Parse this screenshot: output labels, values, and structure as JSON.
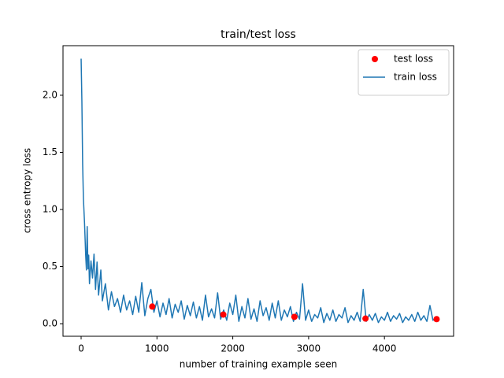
{
  "chart_data": {
    "type": "line",
    "title": "train/test loss",
    "x_label": "number of training example seen",
    "y_label": "cross entropy loss",
    "xlim": [
      -239,
      4912
    ],
    "ylim": [
      -0.11,
      2.434
    ],
    "xticks": [
      0,
      1000,
      2000,
      3000,
      4000
    ],
    "yticks": [
      {
        "value": 0,
        "label": "0.0"
      },
      {
        "value": 0.5,
        "label": "0.5"
      },
      {
        "value": 1,
        "label": "1.0"
      },
      {
        "value": 1.5,
        "label": "1.5"
      },
      {
        "value": 2,
        "label": "2.0"
      }
    ],
    "grid": false,
    "legend": "upper right",
    "series": [
      {
        "name": "test loss",
        "type": "scatter",
        "color": "#ff0000",
        "x": [
          938,
          1875,
          2813,
          3750,
          4688
        ],
        "values": [
          0.15,
          0.08,
          0.06,
          0.045,
          0.04
        ]
      },
      {
        "name": "train loss",
        "type": "line",
        "color": "#1f77b4",
        "x": [
          0,
          10,
          20,
          30,
          45,
          60,
          70,
          80,
          90,
          100,
          110,
          130,
          150,
          170,
          190,
          210,
          230,
          260,
          280,
          320,
          360,
          400,
          440,
          480,
          520,
          560,
          600,
          640,
          680,
          720,
          760,
          800,
          840,
          880,
          920,
          960,
          1000,
          1040,
          1080,
          1120,
          1160,
          1200,
          1240,
          1280,
          1320,
          1360,
          1400,
          1440,
          1480,
          1520,
          1560,
          1600,
          1640,
          1680,
          1720,
          1760,
          1800,
          1840,
          1880,
          1920,
          1960,
          2000,
          2040,
          2080,
          2120,
          2160,
          2200,
          2240,
          2280,
          2320,
          2360,
          2400,
          2440,
          2480,
          2520,
          2560,
          2600,
          2640,
          2680,
          2720,
          2760,
          2800,
          2840,
          2880,
          2920,
          2960,
          3000,
          3040,
          3080,
          3120,
          3160,
          3200,
          3240,
          3280,
          3320,
          3360,
          3400,
          3440,
          3480,
          3520,
          3560,
          3600,
          3640,
          3680,
          3720,
          3760,
          3800,
          3840,
          3880,
          3920,
          3960,
          4000,
          4040,
          4080,
          4120,
          4160,
          4200,
          4240,
          4280,
          4320,
          4360,
          4400,
          4440,
          4480,
          4520,
          4560,
          4600,
          4640,
          4680
        ],
        "values": [
          2.32,
          1.95,
          1.4,
          1.1,
          0.88,
          0.6,
          0.47,
          0.85,
          0.48,
          0.6,
          0.35,
          0.55,
          0.4,
          0.61,
          0.3,
          0.54,
          0.25,
          0.47,
          0.2,
          0.35,
          0.12,
          0.28,
          0.15,
          0.22,
          0.1,
          0.25,
          0.12,
          0.2,
          0.08,
          0.24,
          0.1,
          0.36,
          0.07,
          0.22,
          0.3,
          0.1,
          0.2,
          0.06,
          0.18,
          0.08,
          0.22,
          0.05,
          0.17,
          0.1,
          0.2,
          0.04,
          0.16,
          0.07,
          0.19,
          0.05,
          0.15,
          0.03,
          0.25,
          0.06,
          0.13,
          0.05,
          0.27,
          0.04,
          0.12,
          0.03,
          0.18,
          0.08,
          0.25,
          0.02,
          0.15,
          0.05,
          0.22,
          0.04,
          0.13,
          0.02,
          0.2,
          0.07,
          0.14,
          0.03,
          0.18,
          0.05,
          0.2,
          0.03,
          0.12,
          0.06,
          0.15,
          0.02,
          0.1,
          0.04,
          0.35,
          0.03,
          0.12,
          0.02,
          0.08,
          0.05,
          0.14,
          0.01,
          0.09,
          0.03,
          0.12,
          0.02,
          0.08,
          0.05,
          0.14,
          0.01,
          0.07,
          0.03,
          0.1,
          0.02,
          0.3,
          0.02,
          0.08,
          0.03,
          0.09,
          0.01,
          0.06,
          0.03,
          0.1,
          0.02,
          0.07,
          0.04,
          0.09,
          0.01,
          0.06,
          0.03,
          0.08,
          0.02,
          0.1,
          0.03,
          0.07,
          0.02,
          0.16,
          0.03,
          0.05
        ]
      }
    ]
  }
}
